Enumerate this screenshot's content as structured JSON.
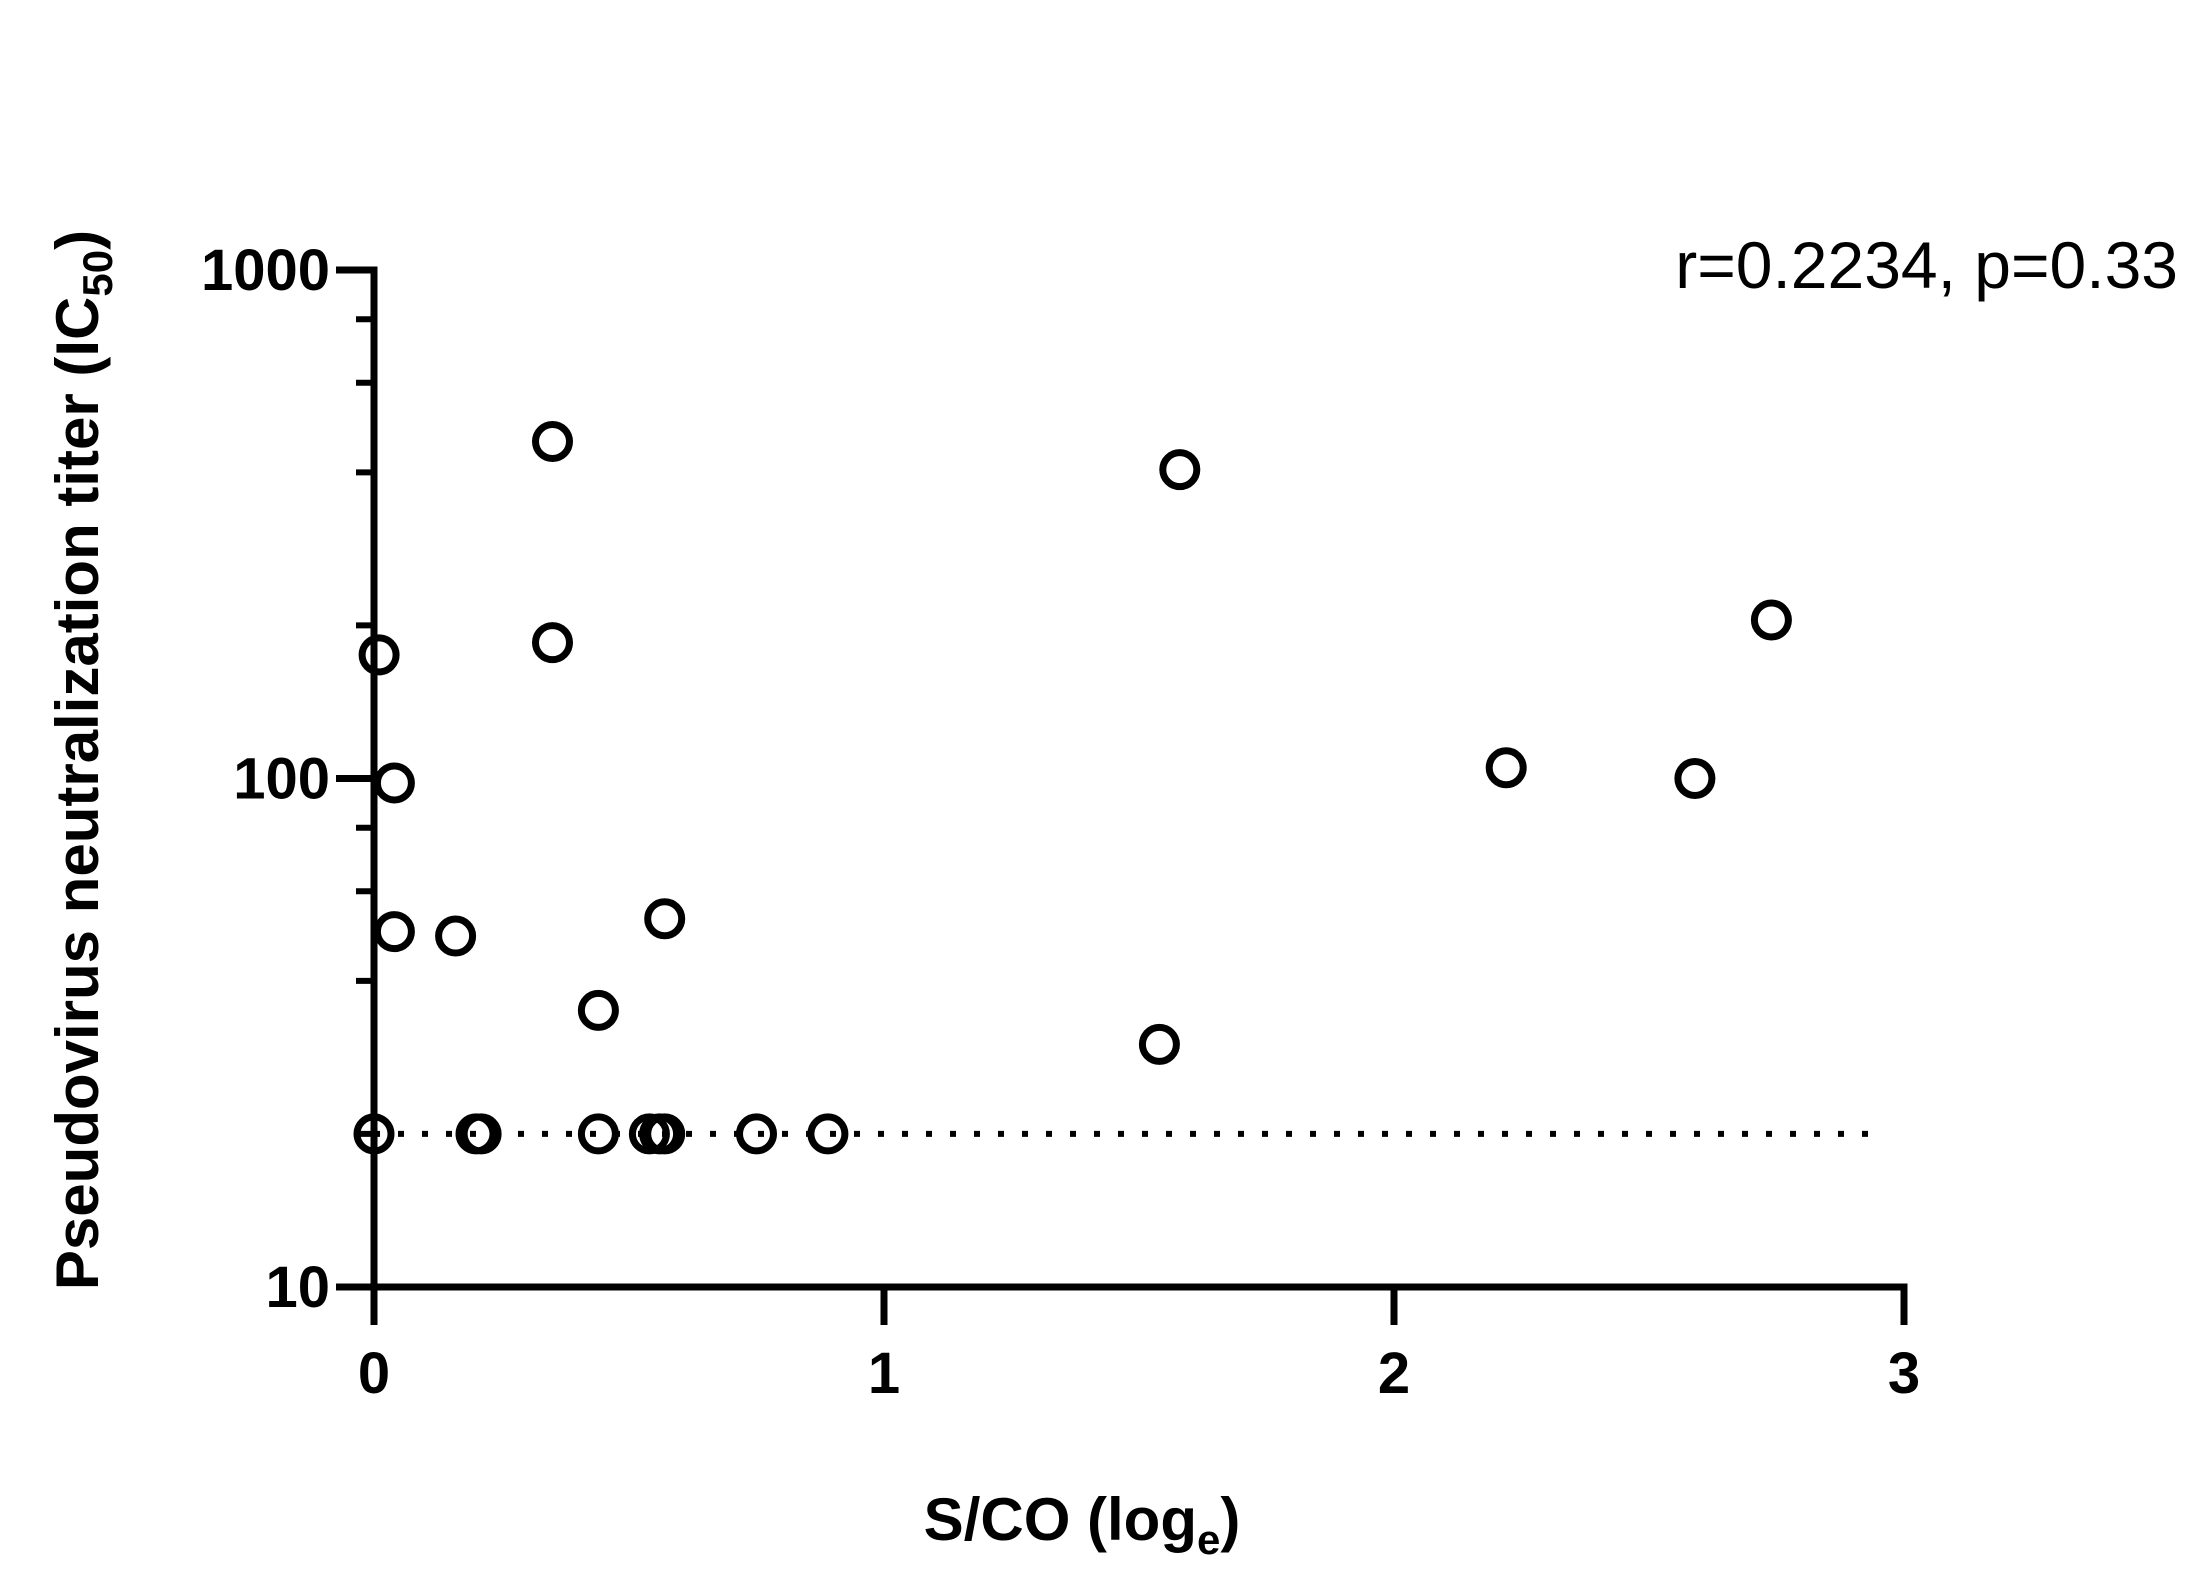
{
  "chart_data": {
    "type": "scatter",
    "title": "",
    "xlabel": "S/CO (log",
    "xlabel_sub": "e",
    "xlabel_end": ")",
    "ylabel": "Pseudovirus neutralization titer (IC",
    "ylabel_sub": "50",
    "ylabel_end": ")",
    "x_scale": "linear",
    "y_scale": "log",
    "xlim": [
      0,
      3
    ],
    "ylim": [
      10,
      1000
    ],
    "x_ticks": [
      0,
      1,
      2,
      3
    ],
    "x_tick_labels": [
      "0",
      "1",
      "2",
      "3"
    ],
    "y_ticks": [
      10,
      100,
      1000
    ],
    "y_tick_labels": [
      "10",
      "100",
      "1000"
    ],
    "y_minor_ticks": [
      20,
      40,
      60,
      80,
      200,
      400,
      600,
      800
    ],
    "grid": false,
    "marker": "open-circle",
    "annotation": "r=0.2234, p=0.33",
    "threshold_line": {
      "y": 20,
      "x_range": [
        0,
        2.95
      ],
      "style": "dotted"
    },
    "points": [
      {
        "x": 0.35,
        "y": 460
      },
      {
        "x": 1.58,
        "y": 405
      },
      {
        "x": 2.74,
        "y": 205
      },
      {
        "x": 0.35,
        "y": 185
      },
      {
        "x": 0.01,
        "y": 175
      },
      {
        "x": 2.22,
        "y": 105
      },
      {
        "x": 2.59,
        "y": 100
      },
      {
        "x": 0.04,
        "y": 98
      },
      {
        "x": 0.57,
        "y": 53
      },
      {
        "x": 0.04,
        "y": 50
      },
      {
        "x": 0.16,
        "y": 49
      },
      {
        "x": 0.44,
        "y": 35
      },
      {
        "x": 1.54,
        "y": 30
      },
      {
        "x": 0.0,
        "y": 20
      },
      {
        "x": 0.2,
        "y": 20
      },
      {
        "x": 0.21,
        "y": 20
      },
      {
        "x": 0.44,
        "y": 20
      },
      {
        "x": 0.54,
        "y": 20
      },
      {
        "x": 0.56,
        "y": 20
      },
      {
        "x": 0.57,
        "y": 20
      },
      {
        "x": 0.75,
        "y": 20
      },
      {
        "x": 0.89,
        "y": 20
      }
    ]
  }
}
